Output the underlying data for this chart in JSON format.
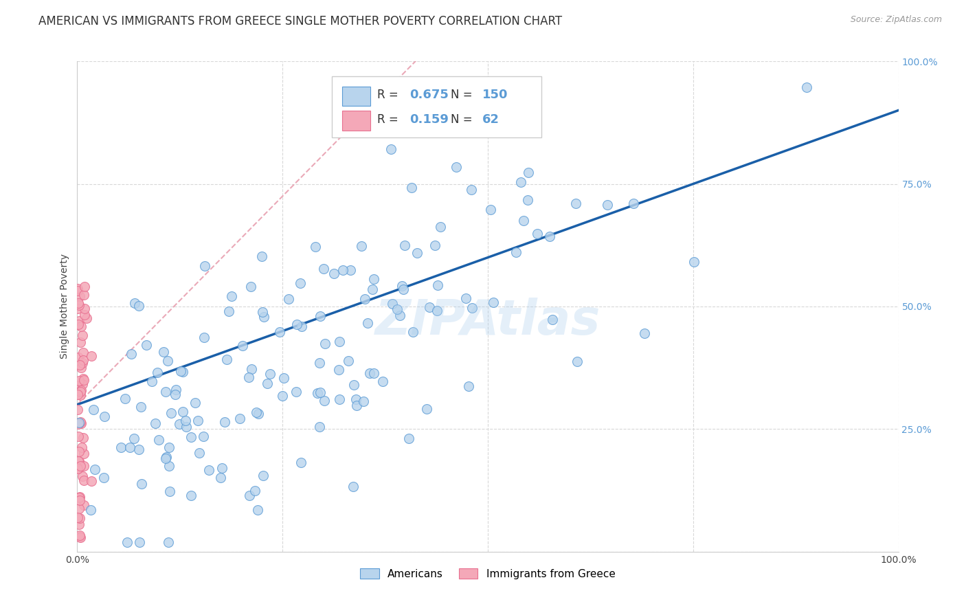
{
  "title": "AMERICAN VS IMMIGRANTS FROM GREECE SINGLE MOTHER POVERTY CORRELATION CHART",
  "source_text": "Source: ZipAtlas.com",
  "ylabel": "Single Mother Poverty",
  "xlim": [
    0,
    1.0
  ],
  "ylim": [
    0,
    1.0
  ],
  "x_tick_labels": [
    "0.0%",
    "",
    "",
    "",
    "100.0%"
  ],
  "y_tick_labels": [
    "",
    "25.0%",
    "50.0%",
    "75.0%",
    "100.0%"
  ],
  "watermark": "ZIPAtlas",
  "r_american": 0.675,
  "n_american": 150,
  "r_greece": 0.159,
  "n_greece": 62,
  "blue_fill": "#b8d4ed",
  "blue_edge": "#5b9bd5",
  "pink_fill": "#f4a8b8",
  "pink_edge": "#e87090",
  "regression_blue": "#1a5fa8",
  "regression_pink": "#e8a0b0",
  "title_fontsize": 12,
  "axis_label_fontsize": 10,
  "tick_fontsize": 10,
  "background_color": "#ffffff",
  "grid_color": "#d8d8d8",
  "legend_r_color": "#5b9bd5",
  "legend_n_color": "#5b9bd5"
}
